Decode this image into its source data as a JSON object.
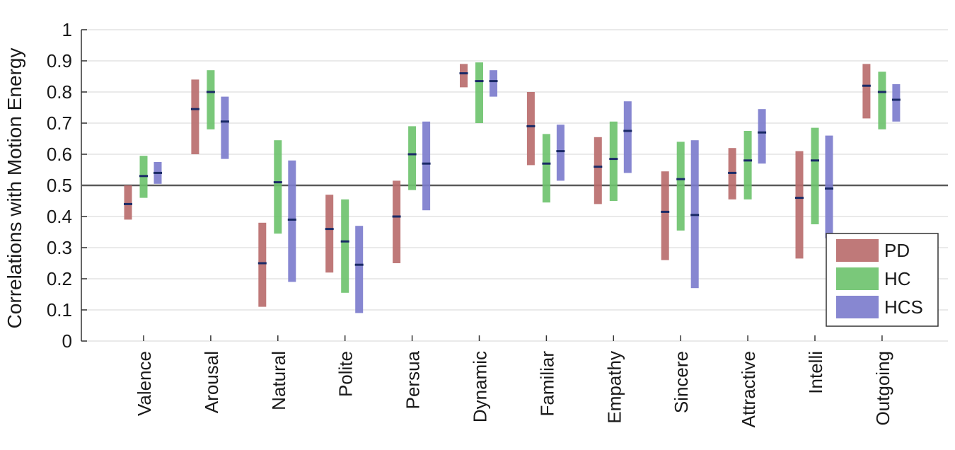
{
  "chart_data": {
    "type": "errorbar",
    "ylabel": "Correlations with Motion Energy",
    "ylim": [
      0,
      1
    ],
    "yticks": [
      0,
      0.1,
      0.2,
      0.3,
      0.4,
      0.5,
      0.6,
      0.7,
      0.8,
      0.9,
      1
    ],
    "ytick_labels": [
      "0",
      "0.1",
      "0.2",
      "0.3",
      "0.4",
      "0.5",
      "0.6",
      "0.7",
      "0.8",
      "0.9",
      "1"
    ],
    "reference_line": 0.5,
    "grid": true,
    "legend_position": "bottom-right",
    "categories": [
      "Valence",
      "Arousal",
      "Natural",
      "Polite",
      "Persua",
      "Dynamic",
      "Familiar",
      "Empathy",
      "Sincere",
      "Attractive",
      "Intelli",
      "Outgoing"
    ],
    "series": [
      {
        "name": "PD",
        "color": "#b86a6a",
        "mean": [
          0.44,
          0.745,
          0.25,
          0.36,
          0.4,
          0.86,
          0.69,
          0.56,
          0.415,
          0.54,
          0.46,
          0.82
        ],
        "low": [
          0.39,
          0.6,
          0.11,
          0.22,
          0.25,
          0.815,
          0.565,
          0.44,
          0.26,
          0.455,
          0.265,
          0.715
        ],
        "high": [
          0.5,
          0.84,
          0.38,
          0.47,
          0.515,
          0.89,
          0.8,
          0.655,
          0.545,
          0.62,
          0.61,
          0.89
        ]
      },
      {
        "name": "HC",
        "color": "#6cc26c",
        "mean": [
          0.53,
          0.8,
          0.51,
          0.32,
          0.6,
          0.835,
          0.57,
          0.585,
          0.52,
          0.58,
          0.58,
          0.8
        ],
        "low": [
          0.46,
          0.68,
          0.345,
          0.155,
          0.485,
          0.7,
          0.445,
          0.45,
          0.355,
          0.455,
          0.375,
          0.68
        ],
        "high": [
          0.595,
          0.87,
          0.645,
          0.455,
          0.69,
          0.895,
          0.665,
          0.705,
          0.64,
          0.675,
          0.685,
          0.865
        ]
      },
      {
        "name": "HCS",
        "color": "#7a7acc",
        "mean": [
          0.54,
          0.705,
          0.39,
          0.245,
          0.57,
          0.835,
          0.61,
          0.675,
          0.405,
          0.67,
          0.49,
          0.775
        ],
        "low": [
          0.505,
          0.585,
          0.19,
          0.09,
          0.42,
          0.785,
          0.515,
          0.54,
          0.17,
          0.57,
          0.33,
          0.705
        ],
        "high": [
          0.575,
          0.785,
          0.58,
          0.37,
          0.705,
          0.87,
          0.695,
          0.77,
          0.645,
          0.745,
          0.66,
          0.825
        ]
      }
    ]
  }
}
